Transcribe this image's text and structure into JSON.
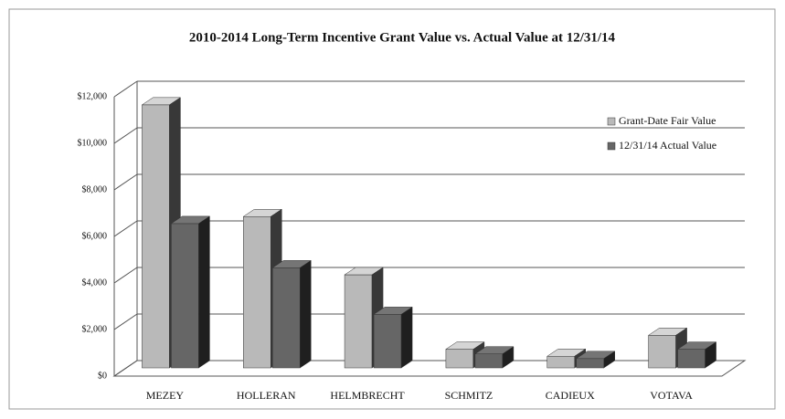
{
  "chart_data": {
    "type": "bar3d",
    "title": "2010-2014 Long-Term Incentive Grant Value vs. Actual Value at 12/31/14",
    "categories": [
      "MEZEY",
      "HOLLERAN",
      "HELMBRECHT",
      "SCHMITZ",
      "CADIEUX",
      "VOTAVA"
    ],
    "series": [
      {
        "name": "Grant-Date Fair Value",
        "color": "#b9b9b9",
        "values": [
          11300,
          6500,
          4000,
          800,
          500,
          1400
        ]
      },
      {
        "name": "12/31/14 Actual Value",
        "color": "#666666",
        "values": [
          6200,
          4300,
          2300,
          600,
          400,
          800
        ]
      }
    ],
    "ylim": [
      0,
      12000
    ],
    "yticks": [
      {
        "value": 0,
        "label": "$0"
      },
      {
        "value": 2000,
        "label": "$2,000"
      },
      {
        "value": 4000,
        "label": "$4,000"
      },
      {
        "value": 6000,
        "label": "$6,000"
      },
      {
        "value": 8000,
        "label": "$8,000"
      },
      {
        "value": 10000,
        "label": "$10,000"
      },
      {
        "value": 12000,
        "label": "$12,000"
      }
    ],
    "grid": true,
    "legend": "top-right"
  }
}
